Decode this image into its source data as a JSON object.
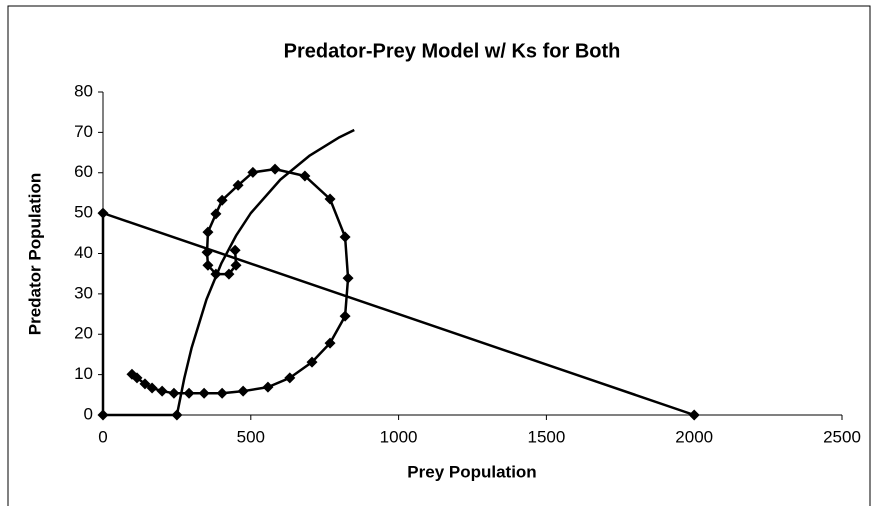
{
  "chart_data": {
    "type": "scatter",
    "title": "Predator-Prey Model w/ Ks for Both",
    "x_label": "Prey Population",
    "y_label": "Predator Population",
    "xlim": [
      0,
      2500
    ],
    "xticks": [
      0,
      500,
      1000,
      1500,
      2000,
      2500
    ],
    "ylim": [
      0,
      80
    ],
    "yticks": [
      0,
      10,
      20,
      30,
      40,
      50,
      60,
      70,
      80
    ],
    "series": [
      {
        "color": "#000000",
        "markers": true,
        "x": [
          250,
          0,
          0,
          2000
        ],
        "values": [
          0,
          0,
          50,
          0
        ]
      },
      {
        "color": "#000000",
        "markers": false,
        "x": [
          250,
          275,
          300,
          350,
          400,
          450,
          500,
          600,
          700,
          800,
          850
        ],
        "values": [
          0,
          9.1,
          16.7,
          28.6,
          37.5,
          44.4,
          50,
          58.3,
          64.3,
          68.8,
          70.6
        ]
      },
      {
        "color": "#000000",
        "markers": true,
        "x": [
          98,
          115,
          142,
          166,
          200,
          240,
          291,
          342,
          403,
          474,
          558,
          632,
          707,
          768,
          819,
          829,
          819,
          768,
          683,
          582,
          507,
          457,
          403,
          382,
          355,
          352,
          355,
          382,
          426,
          450,
          447
        ],
        "values": [
          10.1,
          9.2,
          7.7,
          6.7,
          5.9,
          5.4,
          5.4,
          5.4,
          5.4,
          5.9,
          6.9,
          9.2,
          13.1,
          17.8,
          24.5,
          33.9,
          44.1,
          53.5,
          59.2,
          60.9,
          60.1,
          56.9,
          53.2,
          49.8,
          45.3,
          40.3,
          37.1,
          34.9,
          34.9,
          37.1,
          40.8
        ]
      }
    ]
  }
}
